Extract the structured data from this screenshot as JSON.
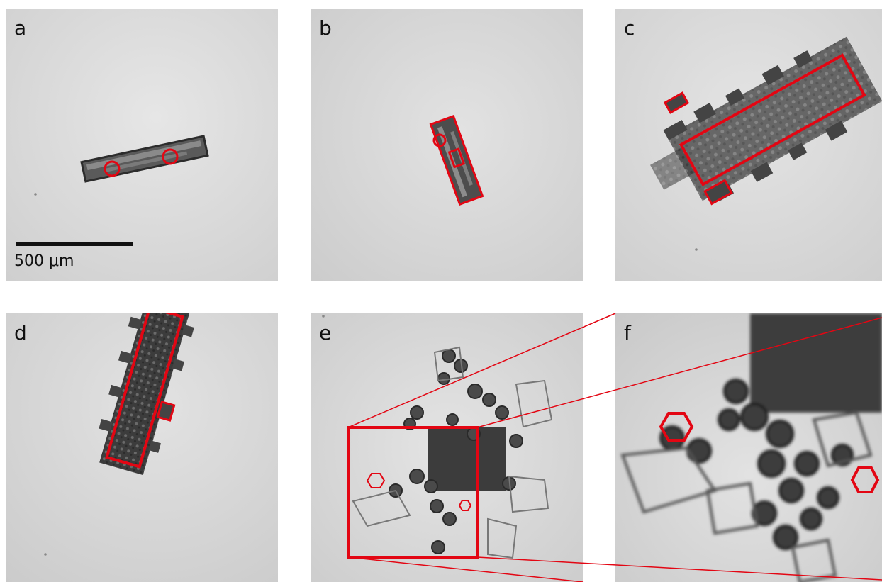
{
  "panels": [
    {
      "id": "a",
      "label": "a"
    },
    {
      "id": "b",
      "label": "b"
    },
    {
      "id": "c",
      "label": "c"
    },
    {
      "id": "d",
      "label": "d"
    },
    {
      "id": "e",
      "label": "e"
    },
    {
      "id": "f",
      "label": "f"
    }
  ],
  "scalebar": {
    "label": "500 μm"
  },
  "colors": {
    "highlight": "#e30613",
    "background": "#d9d9d9",
    "crystal": "#3a3a3a"
  }
}
